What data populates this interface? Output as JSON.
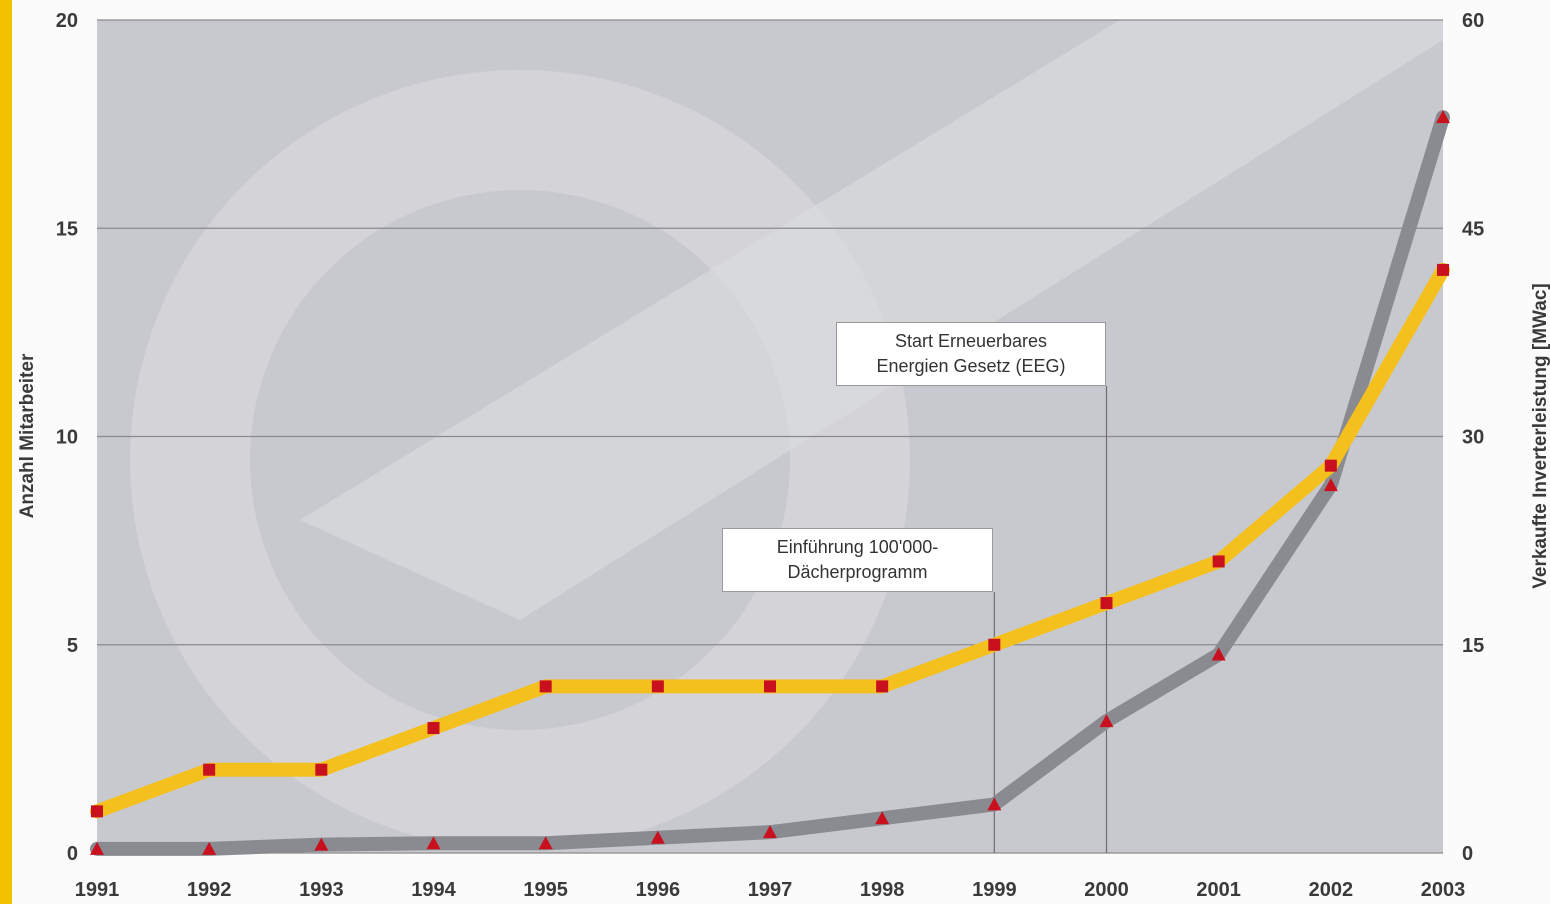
{
  "chart_data": {
    "type": "line",
    "title": "",
    "x": [
      "1991",
      "1992",
      "1993",
      "1994",
      "1995",
      "1996",
      "1997",
      "1998",
      "1999",
      "2000",
      "2001",
      "2002",
      "2003"
    ],
    "y_left_label": "Anzahl Mitarbeiter",
    "y_right_label": "Verkaufte Inverterleistung [MWac]",
    "y_left_ticks": [
      "0",
      "5",
      "10",
      "15",
      "20"
    ],
    "y_right_ticks": [
      "0",
      "15",
      "30",
      "45",
      "60"
    ],
    "y_left_range": [
      0,
      20
    ],
    "y_right_range": [
      0,
      60
    ],
    "grid": true,
    "series": [
      {
        "axis": "left",
        "color": "#f4c01e",
        "marker": "square",
        "marker_color": "#c8101e",
        "values": [
          1,
          2,
          2,
          3,
          4,
          4,
          4,
          4,
          5,
          6,
          7,
          9.3,
          14
        ]
      },
      {
        "axis": "right",
        "color": "#8a8b90",
        "marker": "triangle",
        "marker_color": "#c8101e",
        "values": [
          0.3,
          0.3,
          0.6,
          0.7,
          0.7,
          1.1,
          1.5,
          2.5,
          3.5,
          9.5,
          14.3,
          26.5,
          53
        ]
      }
    ],
    "annotations": [
      {
        "line1": "Start Erneuerbares",
        "line2": "Energien Gesetz (EEG)",
        "x": "2000"
      },
      {
        "line1": "Einführung 100'000-",
        "line2": "Dächerprogramm",
        "x": "1999"
      }
    ]
  },
  "colors": {
    "plot_bg": "#c8c9ce",
    "grid": "#8a8a8e",
    "left_strip": "#f2c200"
  }
}
